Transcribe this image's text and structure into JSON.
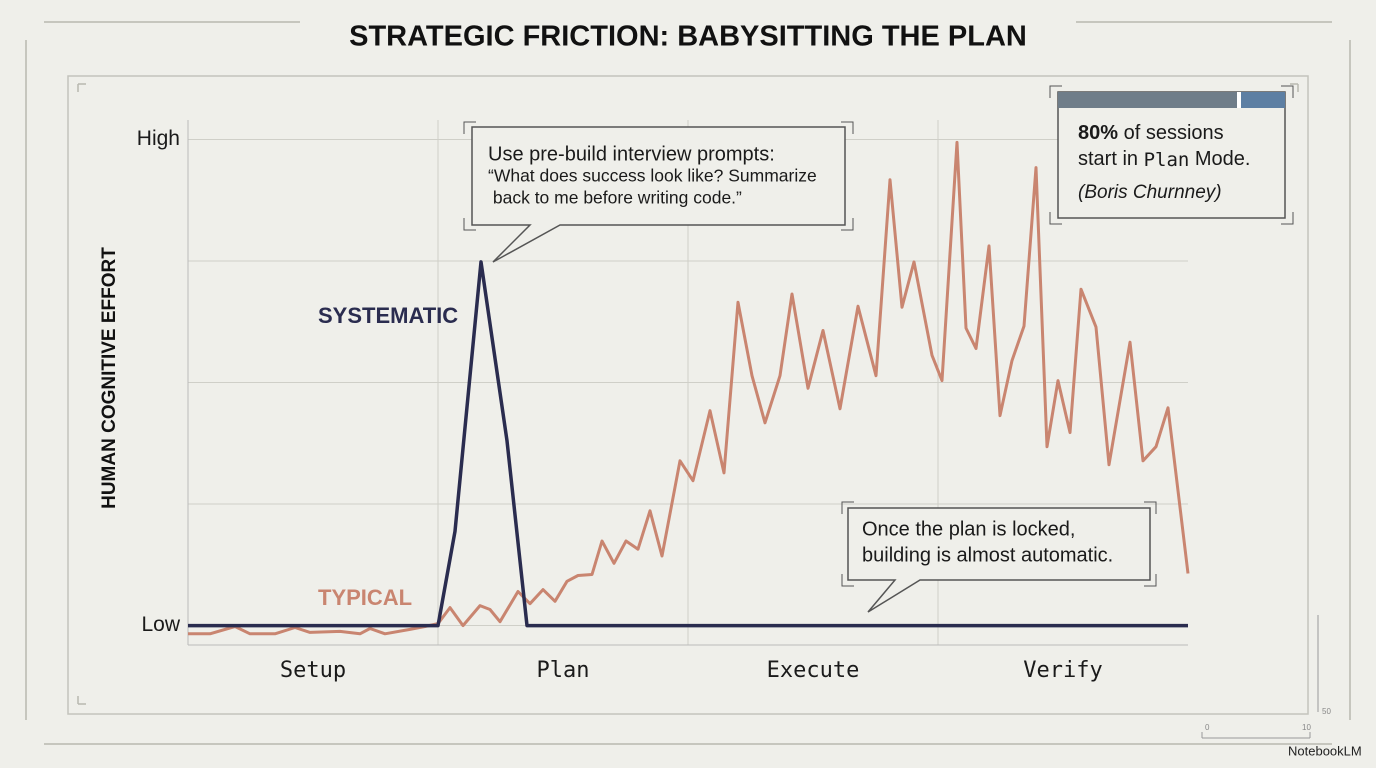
{
  "chart_data": {
    "type": "line",
    "title": "STRATEGIC FRICTION: BABYSITTING THE PLAN",
    "y_label": "HUMAN COGNITIVE EFFORT",
    "categories": [
      "Setup",
      "Plan",
      "Execute",
      "Verify"
    ],
    "xlim": [
      0,
      4
    ],
    "xgrid": [
      1,
      2,
      3
    ],
    "ylim": [
      -4,
      104
    ],
    "yticks": [
      {
        "value": 0,
        "label": "Low"
      },
      {
        "value": 100,
        "label": "High"
      }
    ],
    "ygrid": [
      0,
      25,
      50,
      75,
      100
    ],
    "grid": true,
    "series": [
      {
        "name": "SYSTEMATIC",
        "color": "#2a2c4f",
        "x": [
          0,
          1.0,
          1.068,
          1.172,
          1.276,
          1.356,
          4.0
        ],
        "values": [
          0,
          0,
          19.4,
          74.8,
          38.0,
          0,
          0
        ]
      },
      {
        "name": "TYPICAL",
        "color": "#c98570",
        "x": [
          0,
          0.088,
          0.188,
          0.248,
          0.348,
          0.428,
          0.488,
          0.608,
          0.688,
          0.728,
          0.788,
          0.888,
          0.948,
          1.0,
          1.048,
          1.1,
          1.168,
          1.208,
          1.248,
          1.32,
          1.368,
          1.42,
          1.468,
          1.516,
          1.56,
          1.616,
          1.656,
          1.704,
          1.752,
          1.8,
          1.848,
          1.896,
          1.968,
          2.02,
          2.088,
          2.144,
          2.2,
          2.256,
          2.308,
          2.368,
          2.416,
          2.48,
          2.54,
          2.608,
          2.68,
          2.752,
          2.808,
          2.856,
          2.904,
          2.976,
          3.016,
          3.076,
          3.112,
          3.152,
          3.204,
          3.248,
          3.296,
          3.344,
          3.392,
          3.436,
          3.48,
          3.528,
          3.572,
          3.632,
          3.684,
          3.768,
          3.82,
          3.872,
          3.92,
          4.0
        ],
        "values": [
          -1.7,
          -1.7,
          -0.2,
          -1.7,
          -1.7,
          -0.4,
          -1.4,
          -1.2,
          -1.7,
          -0.6,
          -1.7,
          -0.8,
          -0.2,
          0.4,
          3.7,
          0,
          4.1,
          3.3,
          0.8,
          7.0,
          4.5,
          7.4,
          5.0,
          9.1,
          10.3,
          10.5,
          17.4,
          12.8,
          17.4,
          15.7,
          23.6,
          14.3,
          33.9,
          29.8,
          44.2,
          31.4,
          66.5,
          51.4,
          41.7,
          51.4,
          68.2,
          48.8,
          60.7,
          44.6,
          65.7,
          51.4,
          91.7,
          65.5,
          74.8,
          55.6,
          50.4,
          99.4,
          61.2,
          57.0,
          78.1,
          43.2,
          54.5,
          61.6,
          94.2,
          36.8,
          50.4,
          39.7,
          69.2,
          61.4,
          33.1,
          58.3,
          33.9,
          36.8,
          44.8,
          10.7
        ]
      }
    ],
    "callout_prompts": [
      "Use pre-build interview prompts:",
      "“What does success look like? Summarize",
      " back to me before writing code.”"
    ],
    "callout_locked": [
      "Once the plan is locked,",
      "building is almost automatic."
    ],
    "stat": {
      "figure": "80%",
      "line1_rest": " of sessions",
      "line2_start": "start in ",
      "line2_mono": "Plan",
      "line2_end": " Mode.",
      "source": "(Boris Churnney)"
    },
    "ruler_labels": [
      "0",
      "10",
      "50"
    ],
    "brand": "NotebookLM"
  }
}
